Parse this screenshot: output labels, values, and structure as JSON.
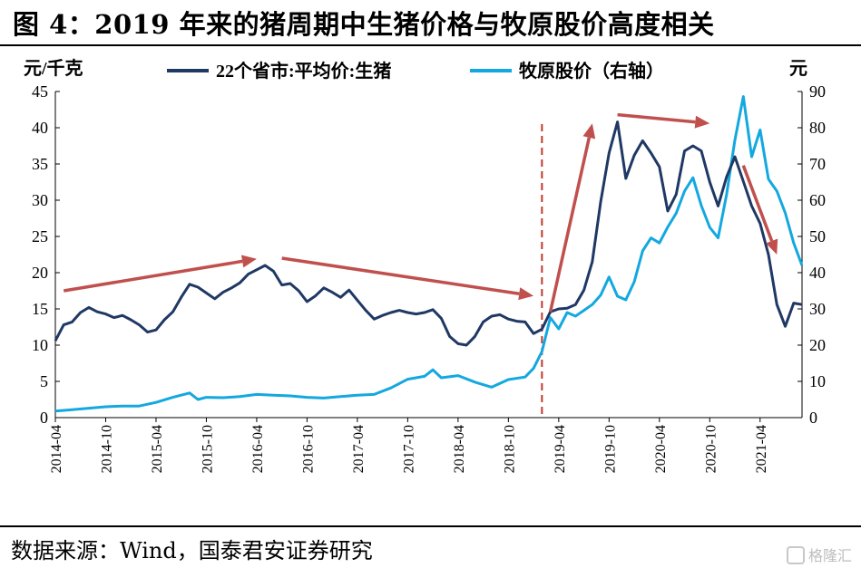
{
  "figure_title": "图 4：2019 年来的猪周期中生猪价格与牧原股价高度相关",
  "source_note": "数据来源：Wind，国泰君安证券研究",
  "watermark": "格隆汇",
  "chart_data": {
    "type": "line",
    "title": "图 4：2019 年来的猪周期中生猪价格与牧原股价高度相关",
    "ylabel_left": "元/千克",
    "ylabel_right": "元",
    "ylim_left": [
      0,
      45
    ],
    "ylim_right": [
      0,
      90
    ],
    "yticks_left": [
      0,
      5,
      10,
      15,
      20,
      25,
      30,
      35,
      40,
      45
    ],
    "yticks_right": [
      0,
      10,
      20,
      30,
      40,
      50,
      60,
      70,
      80,
      90
    ],
    "xlim": [
      "2014-04",
      "2021-09"
    ],
    "xticks": [
      "2014-04",
      "2014-10",
      "2015-04",
      "2015-10",
      "2016-04",
      "2016-10",
      "2017-04",
      "2017-10",
      "2018-04",
      "2018-10",
      "2019-04",
      "2019-10",
      "2020-04",
      "2020-10",
      "2021-04"
    ],
    "legend_placement": "top",
    "grid": false,
    "series": [
      {
        "name": "22个省市:平均价:生猪",
        "axis": "left",
        "color": "#1f3864",
        "points": [
          [
            "2014-04",
            10.6
          ],
          [
            "2014-05",
            12.8
          ],
          [
            "2014-06",
            13.2
          ],
          [
            "2014-07",
            14.5
          ],
          [
            "2014-08",
            15.2
          ],
          [
            "2014-09",
            14.6
          ],
          [
            "2014-10",
            14.3
          ],
          [
            "2014-11",
            13.8
          ],
          [
            "2014-12",
            14.1
          ],
          [
            "2015-01",
            13.5
          ],
          [
            "2015-02",
            12.8
          ],
          [
            "2015-03",
            11.8
          ],
          [
            "2015-04",
            12.1
          ],
          [
            "2015-05",
            13.5
          ],
          [
            "2015-06",
            14.6
          ],
          [
            "2015-07",
            16.6
          ],
          [
            "2015-08",
            18.4
          ],
          [
            "2015-09",
            18.0
          ],
          [
            "2015-10",
            17.2
          ],
          [
            "2015-11",
            16.4
          ],
          [
            "2015-12",
            17.3
          ],
          [
            "2016-01",
            17.9
          ],
          [
            "2016-02",
            18.6
          ],
          [
            "2016-03",
            19.8
          ],
          [
            "2016-04",
            20.4
          ],
          [
            "2016-05",
            21.0
          ],
          [
            "2016-06",
            20.2
          ],
          [
            "2016-07",
            18.3
          ],
          [
            "2016-08",
            18.5
          ],
          [
            "2016-09",
            17.5
          ],
          [
            "2016-10",
            16.0
          ],
          [
            "2016-11",
            16.8
          ],
          [
            "2016-12",
            17.9
          ],
          [
            "2017-01",
            17.3
          ],
          [
            "2017-02",
            16.6
          ],
          [
            "2017-03",
            17.6
          ],
          [
            "2017-04",
            16.2
          ],
          [
            "2017-05",
            14.8
          ],
          [
            "2017-06",
            13.6
          ],
          [
            "2017-07",
            14.1
          ],
          [
            "2017-08",
            14.5
          ],
          [
            "2017-09",
            14.8
          ],
          [
            "2017-10",
            14.5
          ],
          [
            "2017-11",
            14.3
          ],
          [
            "2017-12",
            14.5
          ],
          [
            "2018-01",
            14.9
          ],
          [
            "2018-02",
            13.7
          ],
          [
            "2018-03",
            11.2
          ],
          [
            "2018-04",
            10.2
          ],
          [
            "2018-05",
            10.0
          ],
          [
            "2018-06",
            11.2
          ],
          [
            "2018-07",
            13.2
          ],
          [
            "2018-08",
            14.0
          ],
          [
            "2018-09",
            14.2
          ],
          [
            "2018-10",
            13.6
          ],
          [
            "2018-11",
            13.3
          ],
          [
            "2018-12",
            13.2
          ],
          [
            "2019-01",
            11.6
          ],
          [
            "2019-02",
            12.2
          ],
          [
            "2019-03",
            14.6
          ],
          [
            "2019-04",
            15.0
          ],
          [
            "2019-05",
            15.1
          ],
          [
            "2019-06",
            15.6
          ],
          [
            "2019-07",
            17.6
          ],
          [
            "2019-08",
            21.5
          ],
          [
            "2019-09",
            29.8
          ],
          [
            "2019-10",
            36.5
          ],
          [
            "2019-11",
            40.8
          ],
          [
            "2019-12",
            33.0
          ],
          [
            "2020-01",
            36.2
          ],
          [
            "2020-02",
            38.2
          ],
          [
            "2020-03",
            36.5
          ],
          [
            "2020-04",
            34.6
          ],
          [
            "2020-05",
            28.5
          ],
          [
            "2020-06",
            30.8
          ],
          [
            "2020-07",
            36.8
          ],
          [
            "2020-08",
            37.5
          ],
          [
            "2020-09",
            36.8
          ],
          [
            "2020-10",
            32.5
          ],
          [
            "2020-11",
            29.2
          ],
          [
            "2020-12",
            33.2
          ],
          [
            "2021-01",
            36.0
          ],
          [
            "2021-02",
            32.6
          ],
          [
            "2021-03",
            29.2
          ],
          [
            "2021-04",
            26.8
          ],
          [
            "2021-05",
            22.5
          ],
          [
            "2021-06",
            15.6
          ],
          [
            "2021-07",
            12.6
          ],
          [
            "2021-08",
            15.8
          ],
          [
            "2021-09",
            15.6
          ]
        ]
      },
      {
        "name": "牧原股价（右轴）",
        "axis": "right",
        "color": "#13a8e0",
        "points": [
          [
            "2014-04",
            1.8
          ],
          [
            "2014-06",
            2.2
          ],
          [
            "2014-08",
            2.6
          ],
          [
            "2014-10",
            3.0
          ],
          [
            "2014-12",
            3.2
          ],
          [
            "2015-02",
            3.2
          ],
          [
            "2015-04",
            4.2
          ],
          [
            "2015-06",
            5.6
          ],
          [
            "2015-08",
            6.8
          ],
          [
            "2015-09",
            5.0
          ],
          [
            "2015-10",
            5.6
          ],
          [
            "2015-12",
            5.5
          ],
          [
            "2016-02",
            5.8
          ],
          [
            "2016-04",
            6.4
          ],
          [
            "2016-06",
            6.2
          ],
          [
            "2016-08",
            6.0
          ],
          [
            "2016-10",
            5.6
          ],
          [
            "2016-12",
            5.4
          ],
          [
            "2017-02",
            5.8
          ],
          [
            "2017-04",
            6.2
          ],
          [
            "2017-06",
            6.4
          ],
          [
            "2017-08",
            8.2
          ],
          [
            "2017-10",
            10.6
          ],
          [
            "2017-12",
            11.4
          ],
          [
            "2018-01",
            13.2
          ],
          [
            "2018-02",
            11.0
          ],
          [
            "2018-04",
            11.6
          ],
          [
            "2018-06",
            9.8
          ],
          [
            "2018-08",
            8.4
          ],
          [
            "2018-10",
            10.5
          ],
          [
            "2018-12",
            11.2
          ],
          [
            "2019-01",
            13.6
          ],
          [
            "2019-02",
            18.2
          ],
          [
            "2019-03",
            27.6
          ],
          [
            "2019-04",
            24.5
          ],
          [
            "2019-05",
            29.0
          ],
          [
            "2019-06",
            28.0
          ],
          [
            "2019-07",
            29.6
          ],
          [
            "2019-08",
            31.2
          ],
          [
            "2019-09",
            33.8
          ],
          [
            "2019-10",
            38.8
          ],
          [
            "2019-11",
            33.5
          ],
          [
            "2019-12",
            32.5
          ],
          [
            "2020-01",
            37.5
          ],
          [
            "2020-02",
            46.0
          ],
          [
            "2020-03",
            49.6
          ],
          [
            "2020-04",
            48.2
          ],
          [
            "2020-05",
            52.6
          ],
          [
            "2020-06",
            56.4
          ],
          [
            "2020-07",
            62.5
          ],
          [
            "2020-08",
            66.2
          ],
          [
            "2020-09",
            58.5
          ],
          [
            "2020-10",
            52.5
          ],
          [
            "2020-11",
            49.6
          ],
          [
            "2020-12",
            61.5
          ],
          [
            "2021-01",
            76.6
          ],
          [
            "2021-02",
            88.6
          ],
          [
            "2021-03",
            72.0
          ],
          [
            "2021-04",
            79.4
          ],
          [
            "2021-05",
            65.8
          ],
          [
            "2021-06",
            62.5
          ],
          [
            "2021-07",
            56.5
          ],
          [
            "2021-08",
            48.2
          ],
          [
            "2021-09",
            42.0
          ]
        ]
      }
    ],
    "annotations": [
      {
        "type": "vline",
        "x": "2019-02",
        "style": "dashed",
        "color": "#c0392b"
      },
      {
        "type": "arrow",
        "color": "#c0504d",
        "from": {
          "x": "2014-05",
          "y": 17.5
        },
        "to": {
          "x": "2016-04",
          "y": 21.9
        }
      },
      {
        "type": "arrow",
        "color": "#c0504d",
        "from": {
          "x": "2016-07",
          "y": 22.0
        },
        "to": {
          "x": "2019-01",
          "y": 16.8
        }
      },
      {
        "type": "arrow",
        "color": "#c0504d",
        "from": {
          "x": "2019-03",
          "y": 14.6
        },
        "to": {
          "x": "2019-08",
          "y": 40.6
        }
      },
      {
        "type": "arrow",
        "color": "#c0504d",
        "from": {
          "x": "2019-11",
          "y": 41.8
        },
        "to": {
          "x": "2020-10",
          "y": 40.6
        }
      },
      {
        "type": "arrow",
        "color": "#c0504d",
        "from": {
          "x": "2021-02",
          "y": 34.8
        },
        "to": {
          "x": "2021-06",
          "y": 22.5
        }
      }
    ]
  }
}
